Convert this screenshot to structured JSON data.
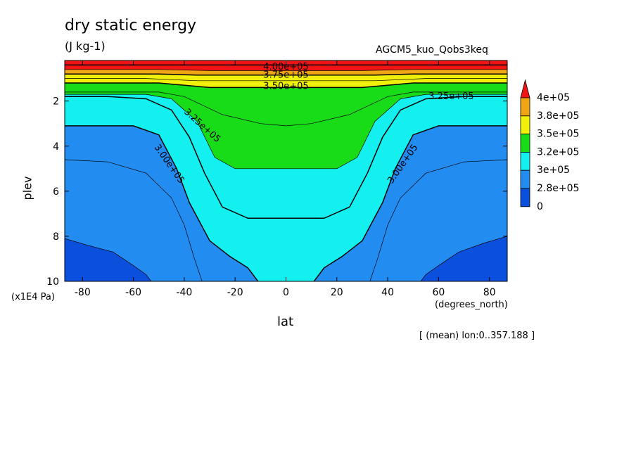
{
  "header": {
    "title": "dry static energy",
    "units": "(J kg-1)",
    "run_name": "AGCM5_kuo_Qobs3keq",
    "mean_note": "[ (mean) lon:0..357.188 ]"
  },
  "colors": {
    "band_0": "#0a50dc",
    "band_2.8e+05": "#238cf0",
    "band_3e+05": "#14f0f0",
    "band_3.2e+05": "#19dc19",
    "band_3.5e+05": "#f0f00a",
    "band_3.8e+05": "#f0a514",
    "band_4e+05": "#f01414"
  },
  "chart_data": {
    "type": "contour",
    "title": "dry static energy",
    "units": "(J kg-1)",
    "xlabel": "lat",
    "x_unit": "(degrees_north)",
    "ylabel": "plev",
    "y_unit": "(x1E4 Pa)",
    "xlim": [
      -87,
      87
    ],
    "ylim": [
      10,
      0.2
    ],
    "x_ticks": [
      "-80",
      "-60",
      "-40",
      "-20",
      "0",
      "20",
      "40",
      "60",
      "80"
    ],
    "y_ticks": [
      "2",
      "4",
      "6",
      "8",
      "10"
    ],
    "colorbar": {
      "labels": [
        "4e+05",
        "3.8e+05",
        "3.5e+05",
        "3.2e+05",
        "3e+05",
        "2.8e+05",
        "0"
      ],
      "colors": [
        "#f01414",
        "#f0a514",
        "#f0f00a",
        "#19dc19",
        "#14f0f0",
        "#238cf0",
        "#0a50dc"
      ]
    },
    "contour_labels": [
      "4.00e+05",
      "3.75e+05",
      "3.50e+05",
      "3.25e+05",
      "3.25e+05",
      "3.00e+05",
      "3.00e+05"
    ],
    "contours": [
      {
        "level": 287500,
        "points": [
          [
            -87,
            8.1
          ],
          [
            -78,
            8.4
          ],
          [
            -68,
            8.7
          ],
          [
            -60,
            9.3
          ],
          [
            -55,
            9.7
          ],
          [
            -53,
            10
          ]
        ]
      },
      {
        "level": 287500,
        "points": [
          [
            87,
            8.0
          ],
          [
            78,
            8.3
          ],
          [
            68,
            8.7
          ],
          [
            60,
            9.3
          ],
          [
            55,
            9.7
          ],
          [
            53,
            10
          ]
        ]
      },
      {
        "level": 300000,
        "points": [
          [
            -87,
            3.1
          ],
          [
            -60,
            3.1
          ],
          [
            -50,
            3.5
          ],
          [
            -43,
            5.0
          ],
          [
            -38,
            6.5
          ],
          [
            -30,
            8.2
          ],
          [
            -22,
            8.9
          ],
          [
            -15,
            9.4
          ],
          [
            -11,
            10
          ]
        ]
      },
      {
        "level": 300000,
        "points": [
          [
            87,
            3.1
          ],
          [
            60,
            3.1
          ],
          [
            50,
            3.5
          ],
          [
            43,
            5.0
          ],
          [
            38,
            6.5
          ],
          [
            30,
            8.2
          ],
          [
            22,
            8.9
          ],
          [
            15,
            9.4
          ],
          [
            11,
            10
          ]
        ]
      },
      {
        "level": 312500,
        "points": [
          [
            -87,
            4.6
          ],
          [
            -70,
            4.7
          ],
          [
            -55,
            5.2
          ],
          [
            -45,
            6.3
          ],
          [
            -40,
            7.5
          ],
          [
            -36,
            9.0
          ],
          [
            -33,
            10
          ]
        ]
      },
      {
        "level": 312500,
        "points": [
          [
            87,
            4.6
          ],
          [
            70,
            4.7
          ],
          [
            55,
            5.2
          ],
          [
            45,
            6.3
          ],
          [
            40,
            7.5
          ],
          [
            36,
            9.0
          ],
          [
            33,
            10
          ]
        ]
      },
      {
        "level": 325000,
        "points": [
          [
            -87,
            1.8
          ],
          [
            -70,
            1.8
          ],
          [
            -55,
            1.9
          ],
          [
            -45,
            2.4
          ],
          [
            -38,
            3.6
          ],
          [
            -32,
            5.2
          ],
          [
            -25,
            6.7
          ],
          [
            -15,
            7.2
          ],
          [
            0,
            7.2
          ],
          [
            15,
            7.2
          ],
          [
            25,
            6.7
          ],
          [
            32,
            5.2
          ],
          [
            38,
            3.6
          ],
          [
            45,
            2.4
          ],
          [
            55,
            1.9
          ],
          [
            70,
            1.8
          ],
          [
            87,
            1.8
          ]
        ]
      },
      {
        "level": 337500,
        "points": [
          [
            -87,
            1.7
          ],
          [
            -55,
            1.7
          ],
          [
            -45,
            1.9
          ],
          [
            -35,
            2.9
          ],
          [
            -28,
            4.5
          ],
          [
            -20,
            5.0
          ],
          [
            0,
            5.0
          ],
          [
            20,
            5.0
          ],
          [
            28,
            4.5
          ],
          [
            35,
            2.9
          ],
          [
            45,
            1.9
          ],
          [
            55,
            1.7
          ],
          [
            87,
            1.7
          ]
        ]
      },
      {
        "level": 343750,
        "points": [
          [
            -87,
            1.6
          ],
          [
            -50,
            1.6
          ],
          [
            -40,
            1.8
          ],
          [
            -25,
            2.6
          ],
          [
            -10,
            3.0
          ],
          [
            0,
            3.1
          ],
          [
            10,
            3.0
          ],
          [
            25,
            2.6
          ],
          [
            40,
            1.8
          ],
          [
            50,
            1.6
          ],
          [
            87,
            1.6
          ]
        ]
      },
      {
        "level": 350000,
        "points": [
          [
            -87,
            1.2
          ],
          [
            -50,
            1.2
          ],
          [
            -30,
            1.4
          ],
          [
            0,
            1.4
          ],
          [
            30,
            1.4
          ],
          [
            50,
            1.2
          ],
          [
            87,
            1.2
          ]
        ]
      },
      {
        "level": 362500,
        "points": [
          [
            -87,
            1.0
          ],
          [
            -55,
            1.0
          ],
          [
            -35,
            1.1
          ],
          [
            0,
            1.1
          ],
          [
            35,
            1.1
          ],
          [
            55,
            1.0
          ],
          [
            87,
            1.0
          ]
        ]
      },
      {
        "level": 375000,
        "points": [
          [
            -87,
            0.8
          ],
          [
            -50,
            0.8
          ],
          [
            -35,
            0.85
          ],
          [
            0,
            0.85
          ],
          [
            35,
            0.85
          ],
          [
            50,
            0.8
          ],
          [
            87,
            0.8
          ]
        ]
      },
      {
        "level": 387500,
        "points": [
          [
            -87,
            0.6
          ],
          [
            -50,
            0.6
          ],
          [
            -30,
            0.65
          ],
          [
            0,
            0.65
          ],
          [
            30,
            0.65
          ],
          [
            50,
            0.6
          ],
          [
            87,
            0.6
          ]
        ]
      },
      {
        "level": 400000,
        "points": [
          [
            -87,
            0.4
          ],
          [
            87,
            0.4
          ]
        ]
      }
    ]
  }
}
